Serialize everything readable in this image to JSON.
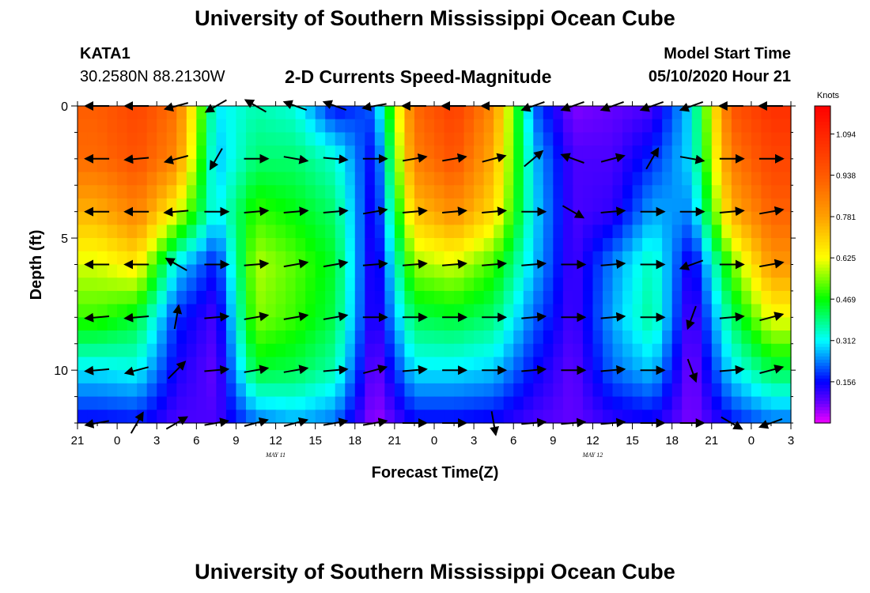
{
  "header": {
    "title": "University of Southern Mississippi Ocean Cube",
    "station_id": "KATA1",
    "station_coords": "30.2580N 88.2130W",
    "chart_title": "2-D Currents Speed-Magnitude",
    "model_label": "Model Start Time",
    "model_time": "05/10/2020 Hour 21"
  },
  "footer": {
    "title": "University of Southern Mississippi Ocean Cube"
  },
  "chart_data": {
    "type": "heatmap",
    "title": "2-D Currents Speed-Magnitude",
    "xlabel": "Forecast Time(Z)",
    "ylabel": "Depth (ft)",
    "x_ticks": [
      "21",
      "0",
      "3",
      "6",
      "9",
      "12",
      "15",
      "18",
      "21",
      "0",
      "3",
      "6",
      "9",
      "12",
      "15",
      "18",
      "21",
      "0",
      "3"
    ],
    "date_labels": [
      {
        "text": "MAY  11",
        "tick_index": 5
      },
      {
        "text": "MAY  12",
        "tick_index": 13
      }
    ],
    "y_ticks": [
      "0",
      "5",
      "10"
    ],
    "y_range": [
      0,
      12
    ],
    "x_range_hours": [
      0,
      54
    ],
    "colorbar": {
      "unit": "Knots",
      "labels": [
        "1.094",
        "0.938",
        "0.781",
        "0.625",
        "0.469",
        "0.312",
        "0.156"
      ],
      "range": [
        0,
        1.2
      ]
    },
    "depth_rows_ft": [
      0,
      2,
      4,
      6,
      8,
      10,
      12
    ],
    "time_columns_hr": [
      1.5,
      4.5,
      7.5,
      10.5,
      13.5,
      16.5,
      19.5,
      22.5,
      25.5,
      28.5,
      31.5,
      34.5,
      37.5,
      40.5,
      43.5,
      46.5,
      49.5,
      52.5
    ],
    "speed_knots": [
      [
        0.93,
        1.0,
        0.88,
        0.3,
        0.36,
        0.33,
        0.15,
        0.22,
        0.9,
        1.02,
        0.82,
        0.22,
        0.06,
        0.08,
        0.1,
        0.3,
        0.95,
        1.06
      ],
      [
        0.9,
        0.96,
        0.83,
        0.27,
        0.4,
        0.4,
        0.34,
        0.14,
        0.85,
        0.96,
        0.75,
        0.28,
        0.1,
        0.1,
        0.18,
        0.3,
        0.86,
        1.0
      ],
      [
        0.75,
        0.85,
        0.62,
        0.3,
        0.5,
        0.46,
        0.4,
        0.12,
        0.72,
        0.82,
        0.68,
        0.3,
        0.1,
        0.12,
        0.26,
        0.24,
        0.75,
        0.92
      ],
      [
        0.6,
        0.66,
        0.3,
        0.16,
        0.58,
        0.52,
        0.44,
        0.1,
        0.56,
        0.6,
        0.5,
        0.28,
        0.1,
        0.24,
        0.36,
        0.12,
        0.52,
        0.8
      ],
      [
        0.5,
        0.44,
        0.18,
        0.1,
        0.55,
        0.5,
        0.42,
        0.1,
        0.42,
        0.44,
        0.4,
        0.22,
        0.1,
        0.26,
        0.38,
        0.08,
        0.4,
        0.62
      ],
      [
        0.3,
        0.32,
        0.14,
        0.08,
        0.44,
        0.42,
        0.36,
        0.06,
        0.3,
        0.3,
        0.28,
        0.16,
        0.08,
        0.22,
        0.28,
        0.06,
        0.3,
        0.42
      ],
      [
        0.15,
        0.16,
        0.1,
        0.1,
        0.22,
        0.26,
        0.22,
        0.04,
        0.15,
        0.15,
        0.14,
        0.1,
        0.08,
        0.12,
        0.14,
        0.06,
        0.16,
        0.22
      ]
    ],
    "vector_direction_deg": [
      [
        180,
        180,
        195,
        210,
        150,
        160,
        160,
        190,
        180,
        180,
        180,
        200,
        200,
        200,
        200,
        200,
        180,
        180
      ],
      [
        180,
        185,
        195,
        240,
        0,
        350,
        355,
        0,
        10,
        10,
        15,
        40,
        160,
        15,
        60,
        350,
        0,
        0
      ],
      [
        180,
        180,
        185,
        0,
        5,
        5,
        5,
        10,
        5,
        5,
        5,
        0,
        330,
        5,
        0,
        0,
        5,
        10
      ],
      [
        180,
        180,
        150,
        0,
        5,
        10,
        10,
        5,
        5,
        5,
        5,
        5,
        0,
        5,
        0,
        200,
        0,
        10
      ],
      [
        185,
        185,
        80,
        5,
        10,
        10,
        10,
        0,
        0,
        0,
        0,
        5,
        0,
        5,
        0,
        250,
        5,
        15
      ],
      [
        185,
        195,
        45,
        5,
        10,
        10,
        5,
        15,
        5,
        0,
        0,
        5,
        0,
        5,
        0,
        290,
        5,
        15
      ],
      [
        190,
        60,
        30,
        10,
        15,
        15,
        10,
        10,
        0,
        0,
        280,
        5,
        5,
        5,
        0,
        0,
        330,
        200
      ]
    ]
  }
}
